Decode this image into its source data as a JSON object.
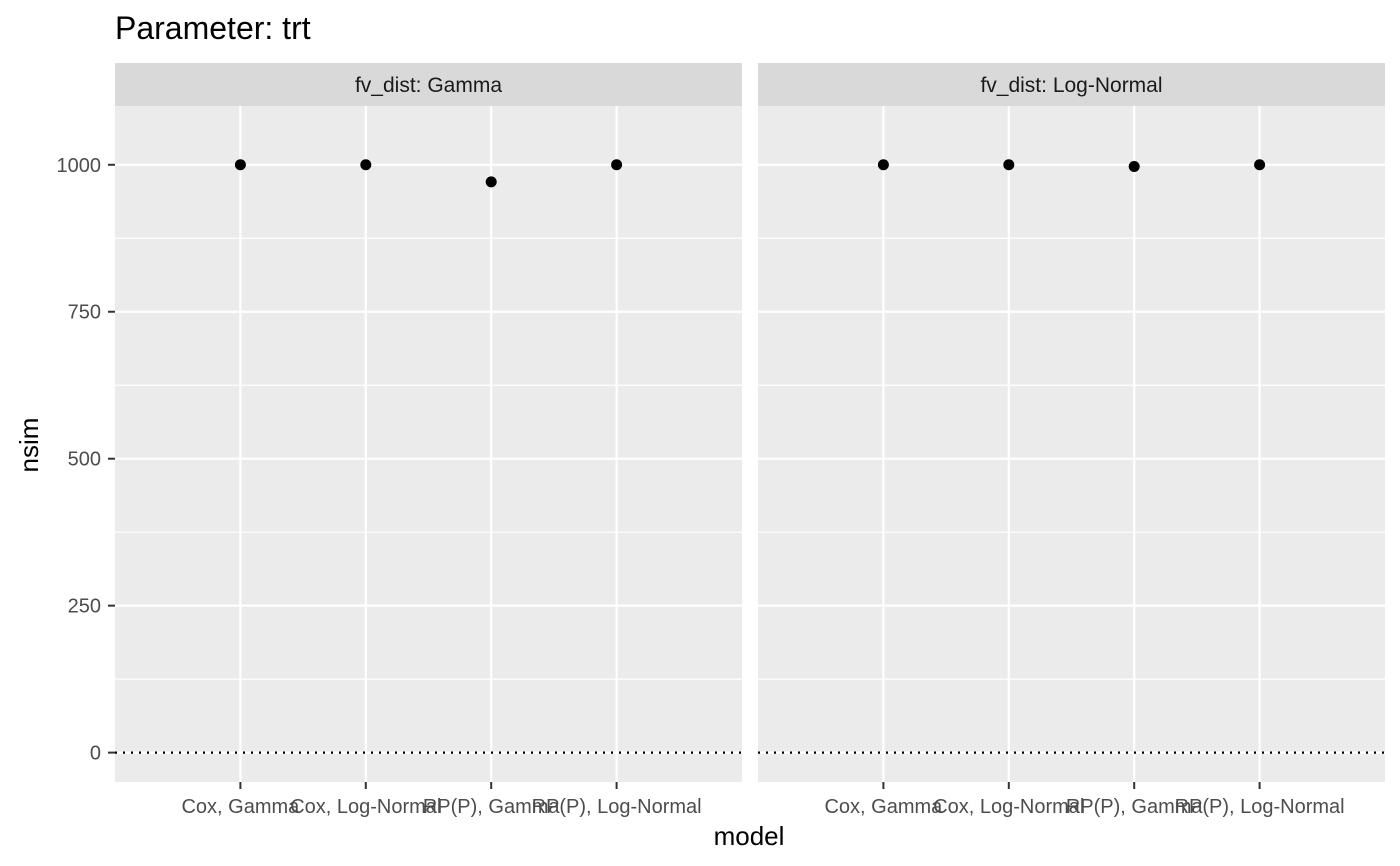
{
  "chart_data": {
    "type": "scatter",
    "title": "Parameter: trt",
    "xlabel": "model",
    "ylabel": "nsim",
    "ylim": [
      -50,
      1100
    ],
    "y_ticks": [
      0,
      250,
      500,
      750,
      1000
    ],
    "y_tick_labels": [
      "0",
      "250",
      "500",
      "750",
      "1000"
    ],
    "categories": [
      "Cox, Gamma",
      "Cox, Log-Normal",
      "RP(P), Gamma",
      "RP(P), Log-Normal"
    ],
    "reference_line": {
      "y": 0,
      "style": "dotted"
    },
    "grid": true,
    "panels": [
      {
        "strip": "fv_dist: Gamma",
        "values": [
          1000,
          1000,
          971,
          1000
        ]
      },
      {
        "strip": "fv_dist: Log-Normal",
        "values": [
          1000,
          1000,
          997,
          1000
        ]
      }
    ]
  }
}
